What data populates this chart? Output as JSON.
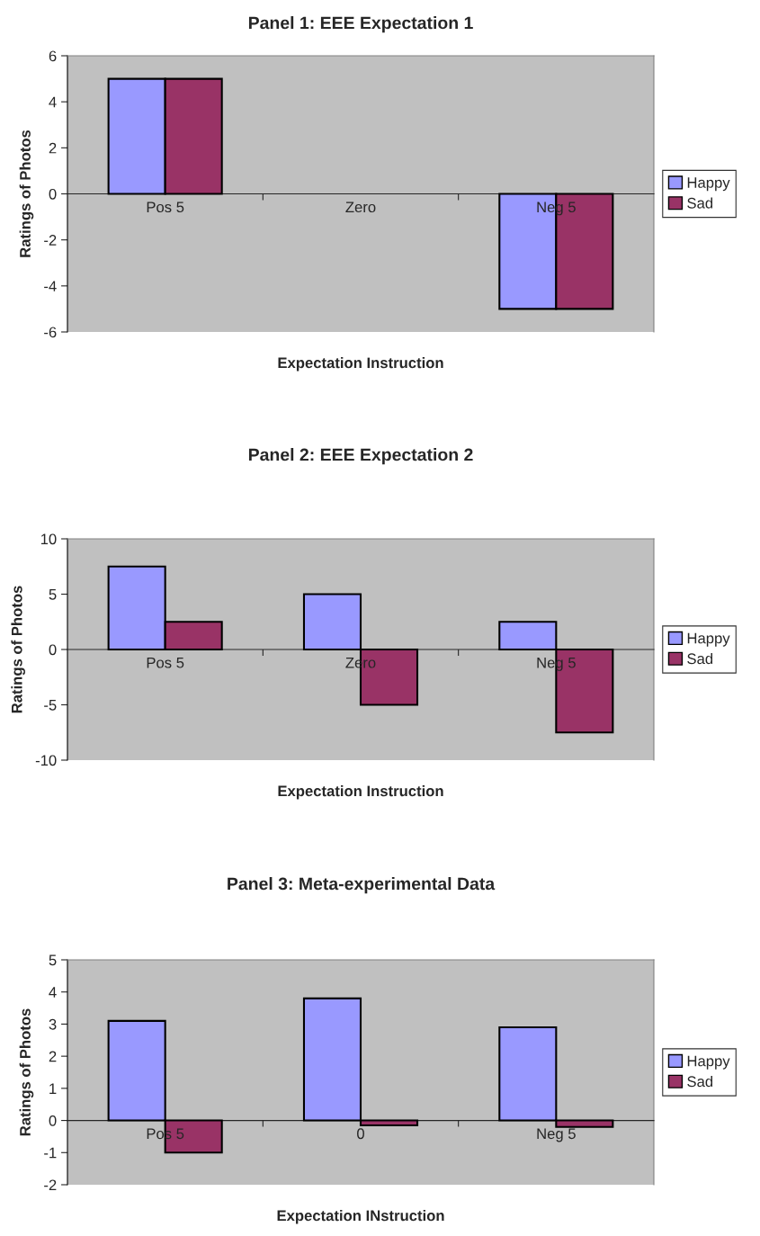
{
  "chart_data": [
    {
      "type": "bar",
      "title": "Panel 1: EEE Expectation 1",
      "xlabel": "Expectation Instruction",
      "ylabel": "Ratings of Photos",
      "categories": [
        "Pos 5",
        "Zero",
        "Neg 5"
      ],
      "series": [
        {
          "name": "Happy",
          "color": "#9999ff",
          "values": [
            5,
            0,
            -5
          ]
        },
        {
          "name": "Sad",
          "color": "#993366",
          "values": [
            5,
            0,
            -5
          ]
        }
      ],
      "ylim": [
        -6,
        6
      ],
      "yticks": [
        -6,
        -4,
        -2,
        0,
        2,
        4,
        6
      ],
      "grid": false,
      "legend": "right"
    },
    {
      "type": "bar",
      "title": "Panel 2: EEE Expectation 2",
      "xlabel": "Expectation Instruction",
      "ylabel": "Ratings of Photos",
      "categories": [
        "Pos 5",
        "Zero",
        "Neg 5"
      ],
      "series": [
        {
          "name": "Happy",
          "color": "#9999ff",
          "values": [
            7.5,
            5,
            2.5
          ]
        },
        {
          "name": "Sad",
          "color": "#993366",
          "values": [
            2.5,
            -5,
            -7.5
          ]
        }
      ],
      "ylim": [
        -10,
        10
      ],
      "yticks": [
        -10,
        -5,
        0,
        5,
        10
      ],
      "grid": false,
      "legend": "right"
    },
    {
      "type": "bar",
      "title": "Panel 3: Meta-experimental Data",
      "xlabel": "Expectation INstruction",
      "ylabel": "Ratings of Photos",
      "categories": [
        "Pos 5",
        "0",
        "Neg 5"
      ],
      "series": [
        {
          "name": "Happy",
          "color": "#9999ff",
          "values": [
            3.1,
            3.8,
            2.9
          ]
        },
        {
          "name": "Sad",
          "color": "#993366",
          "values": [
            -1,
            -0.15,
            -0.2
          ]
        }
      ],
      "ylim": [
        -2,
        5
      ],
      "yticks": [
        -2,
        -1,
        0,
        1,
        2,
        3,
        4,
        5
      ],
      "grid": false,
      "legend": "right"
    }
  ]
}
